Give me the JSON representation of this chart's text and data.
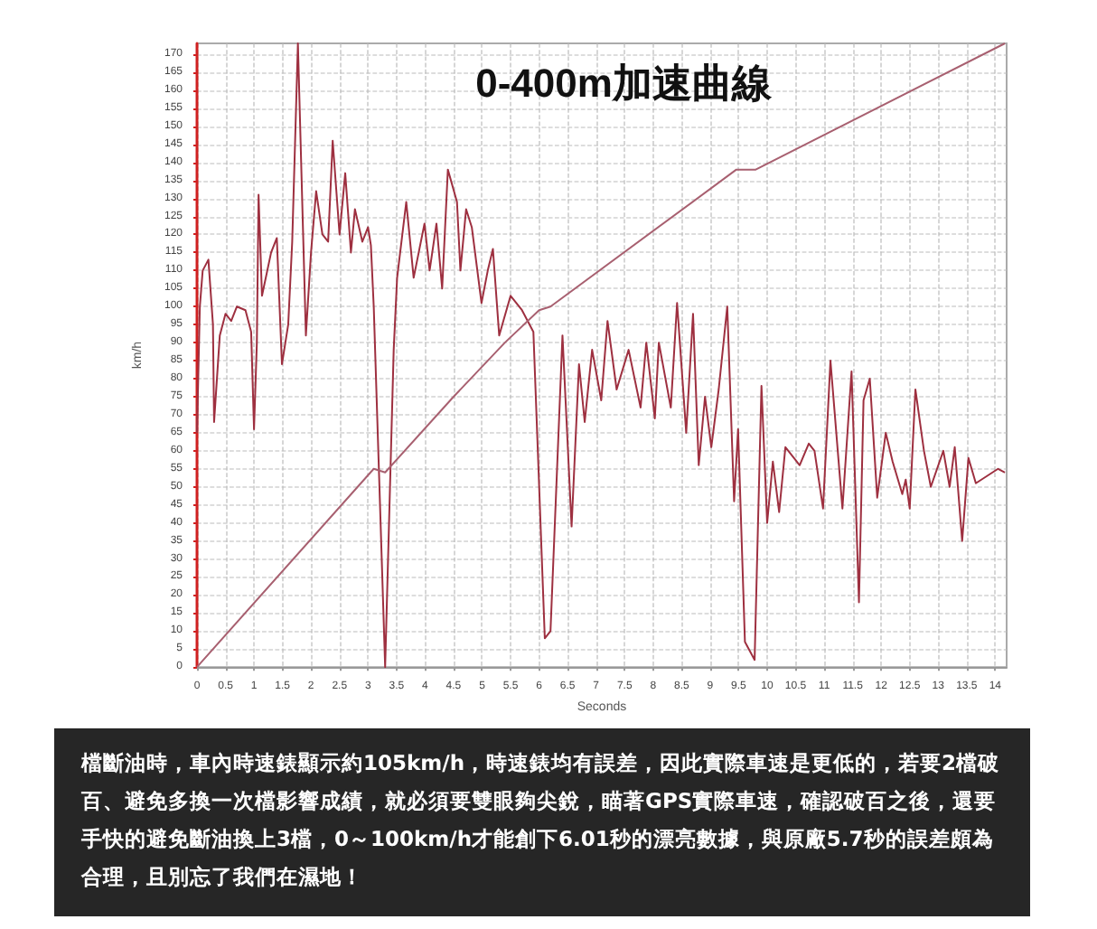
{
  "chart_data": {
    "type": "line",
    "title": "0-400m加速曲線",
    "xlabel": "Seconds",
    "ylabel": "km/h",
    "xlim": [
      0,
      14.2
    ],
    "xticks": [
      0,
      0.5,
      1,
      1.5,
      2,
      2.5,
      3,
      3.5,
      4,
      4.5,
      5,
      5.5,
      6,
      6.5,
      7,
      7.5,
      8,
      8.5,
      9,
      9.5,
      10,
      10.5,
      11,
      11.5,
      12,
      12.5,
      13,
      13.5,
      14
    ],
    "ylim": [
      0,
      173
    ],
    "yticks": [
      0,
      5,
      10,
      15,
      20,
      25,
      30,
      35,
      40,
      45,
      50,
      55,
      60,
      65,
      70,
      75,
      80,
      85,
      90,
      95,
      100,
      105,
      110,
      115,
      120,
      125,
      130,
      135,
      140,
      145,
      150,
      155,
      160,
      165,
      170
    ],
    "grid": true,
    "line_style": "solid",
    "marker": "none",
    "series": [
      {
        "color": "#9e3040",
        "x": [
          0,
          0.05,
          0.1,
          0.2,
          0.28,
          0.3,
          0.4,
          0.5,
          0.6,
          0.7,
          0.85,
          0.95,
          1.0,
          1.05,
          1.08,
          1.14,
          1.3,
          1.4,
          1.49,
          1.6,
          1.67,
          1.77,
          1.91,
          2.0,
          2.09,
          2.2,
          2.3,
          2.38,
          2.5,
          2.6,
          2.7,
          2.77,
          2.9,
          3.0,
          3.05,
          3.1,
          3.3,
          3.45,
          3.51,
          3.67,
          3.8,
          3.99,
          4.08,
          4.2,
          4.3,
          4.4,
          4.56,
          4.62,
          4.72,
          4.82,
          4.99,
          5.1,
          5.19,
          5.3,
          5.5,
          5.7,
          5.9,
          6.1,
          6.2,
          6.41,
          6.57,
          6.7,
          6.8,
          6.93,
          7.09,
          7.2,
          7.36,
          7.57,
          7.78,
          7.88,
          8.03,
          8.1,
          8.31,
          8.42,
          8.58,
          8.7,
          8.8,
          8.91,
          9.02,
          9.15,
          9.3,
          9.42,
          9.49,
          9.61,
          9.78,
          9.9,
          10.0,
          10.1,
          10.21,
          10.32,
          10.57,
          10.73,
          10.83,
          10.98,
          11.11,
          11.32,
          11.48,
          11.61,
          11.69,
          11.8,
          11.93,
          12.08,
          12.2,
          12.37,
          12.43,
          12.5,
          12.6,
          12.75,
          12.87,
          13.09,
          13.2,
          13.29,
          13.42,
          13.53,
          13.66,
          14.05,
          14.17
        ],
        "values": [
          65,
          100,
          110,
          113,
          95,
          68,
          92,
          98,
          96,
          100,
          99,
          93,
          66,
          90,
          131,
          103,
          115,
          119,
          84,
          95,
          118,
          173,
          92,
          115,
          132,
          120,
          118,
          146,
          120,
          137,
          115,
          127,
          118,
          122,
          117,
          100,
          0,
          88,
          108,
          129,
          108,
          123,
          110,
          123,
          105,
          138,
          129,
          110,
          127,
          122,
          101,
          110,
          116,
          92,
          103,
          99,
          93,
          8,
          10,
          92,
          39,
          84,
          68,
          88,
          74,
          96,
          77,
          88,
          72,
          90,
          69,
          90,
          72,
          101,
          65,
          98,
          56,
          75,
          61,
          77,
          100,
          46,
          66,
          7,
          2,
          78,
          40,
          57,
          43,
          61,
          56,
          62,
          60,
          44,
          85,
          44,
          82,
          18,
          74,
          80,
          47,
          65,
          57,
          48,
          52,
          44,
          77,
          60,
          50,
          60,
          50,
          61,
          35,
          58,
          51,
          55,
          54
        ]
      },
      {
        "color": "#a86070",
        "x": [
          0,
          3.1,
          3.3,
          4.5,
          5.4,
          6.0,
          6.2,
          9.46,
          9.8,
          14.17
        ],
        "values": [
          0,
          55,
          54,
          75,
          90,
          99,
          100,
          138,
          138,
          173
        ]
      }
    ],
    "annotations": [
      "檔斷油時，車內時速錶顯示約105km/h，時速錶均有誤差，因此實際車速是更低的，若要2檔破百、避免多換一次檔影響成績，就必須要雙眼夠尖銳，瞄著GPS實際車速，確認破百之後，還要手快的避免斷油換上3檔，0～100km/h才能創下6.01秒的漂亮數據，與原廠5.7秒的誤差頗為合理，且別忘了我們在濕地！"
    ]
  }
}
